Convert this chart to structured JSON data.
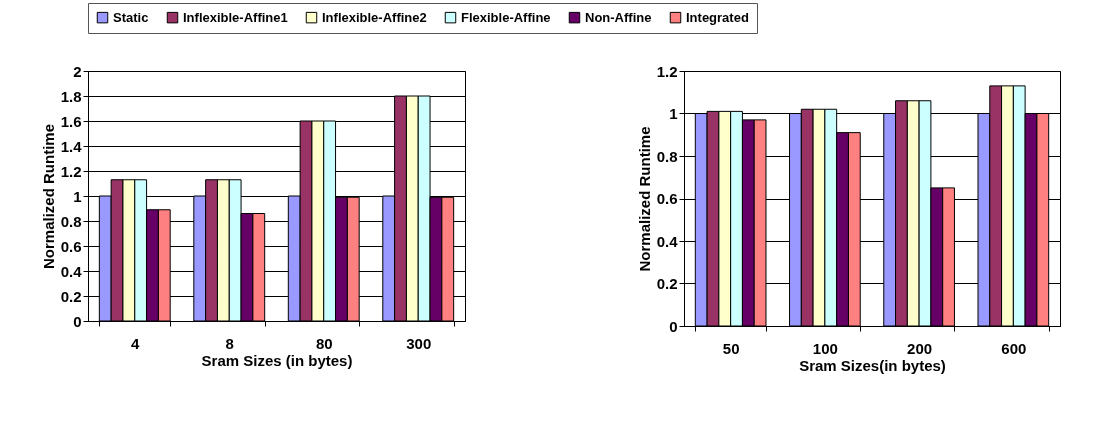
{
  "chart_data": [
    {
      "type": "bar",
      "xlabel": "Sram Sizes (in bytes)",
      "ylabel": "Normalized Runtime",
      "categories": [
        "4",
        "8",
        "80",
        "300"
      ],
      "ylim": [
        0,
        2
      ],
      "yticks": [
        0,
        0.2,
        0.4,
        0.6,
        0.8,
        1,
        1.2,
        1.4,
        1.6,
        1.8,
        2
      ],
      "grid": "y",
      "legend": "top",
      "series": [
        {
          "name": "Static",
          "color": "#9999ff",
          "values": [
            1,
            1,
            1,
            1
          ]
        },
        {
          "name": "Inflexible-Affine1",
          "color": "#993366",
          "values": [
            1.13,
            1.13,
            1.6,
            1.8
          ]
        },
        {
          "name": "Inflexible-Affine2",
          "color": "#ffffcc",
          "values": [
            1.13,
            1.13,
            1.6,
            1.8
          ]
        },
        {
          "name": "Flexible-Affine",
          "color": "#ccffff",
          "values": [
            1.13,
            1.13,
            1.6,
            1.8
          ]
        },
        {
          "name": "Non-Affine",
          "color": "#660066",
          "values": [
            0.89,
            0.86,
            0.99,
            0.99
          ]
        },
        {
          "name": "Integrated",
          "color": "#ff8080",
          "values": [
            0.89,
            0.86,
            0.99,
            0.99
          ]
        }
      ]
    },
    {
      "type": "bar",
      "xlabel": "Sram Sizes(in bytes)",
      "ylabel": "Normalized Runtime",
      "categories": [
        "50",
        "100",
        "200",
        "600"
      ],
      "ylim": [
        0,
        1.2
      ],
      "yticks": [
        0,
        0.2,
        0.4,
        0.6,
        0.8,
        1,
        1.2
      ],
      "grid": "y",
      "legend": "top",
      "series": [
        {
          "name": "Static",
          "color": "#9999ff",
          "values": [
            1,
            1,
            1,
            1
          ]
        },
        {
          "name": "Inflexible-Affine1",
          "color": "#993366",
          "values": [
            1.01,
            1.02,
            1.06,
            1.13
          ]
        },
        {
          "name": "Inflexible-Affine2",
          "color": "#ffffcc",
          "values": [
            1.01,
            1.02,
            1.06,
            1.13
          ]
        },
        {
          "name": "Flexible-Affine",
          "color": "#ccffff",
          "values": [
            1.01,
            1.02,
            1.06,
            1.13
          ]
        },
        {
          "name": "Non-Affine",
          "color": "#660066",
          "values": [
            0.97,
            0.91,
            0.65,
            1.0
          ]
        },
        {
          "name": "Integrated",
          "color": "#ff8080",
          "values": [
            0.97,
            0.91,
            0.65,
            1.0
          ]
        }
      ]
    }
  ]
}
